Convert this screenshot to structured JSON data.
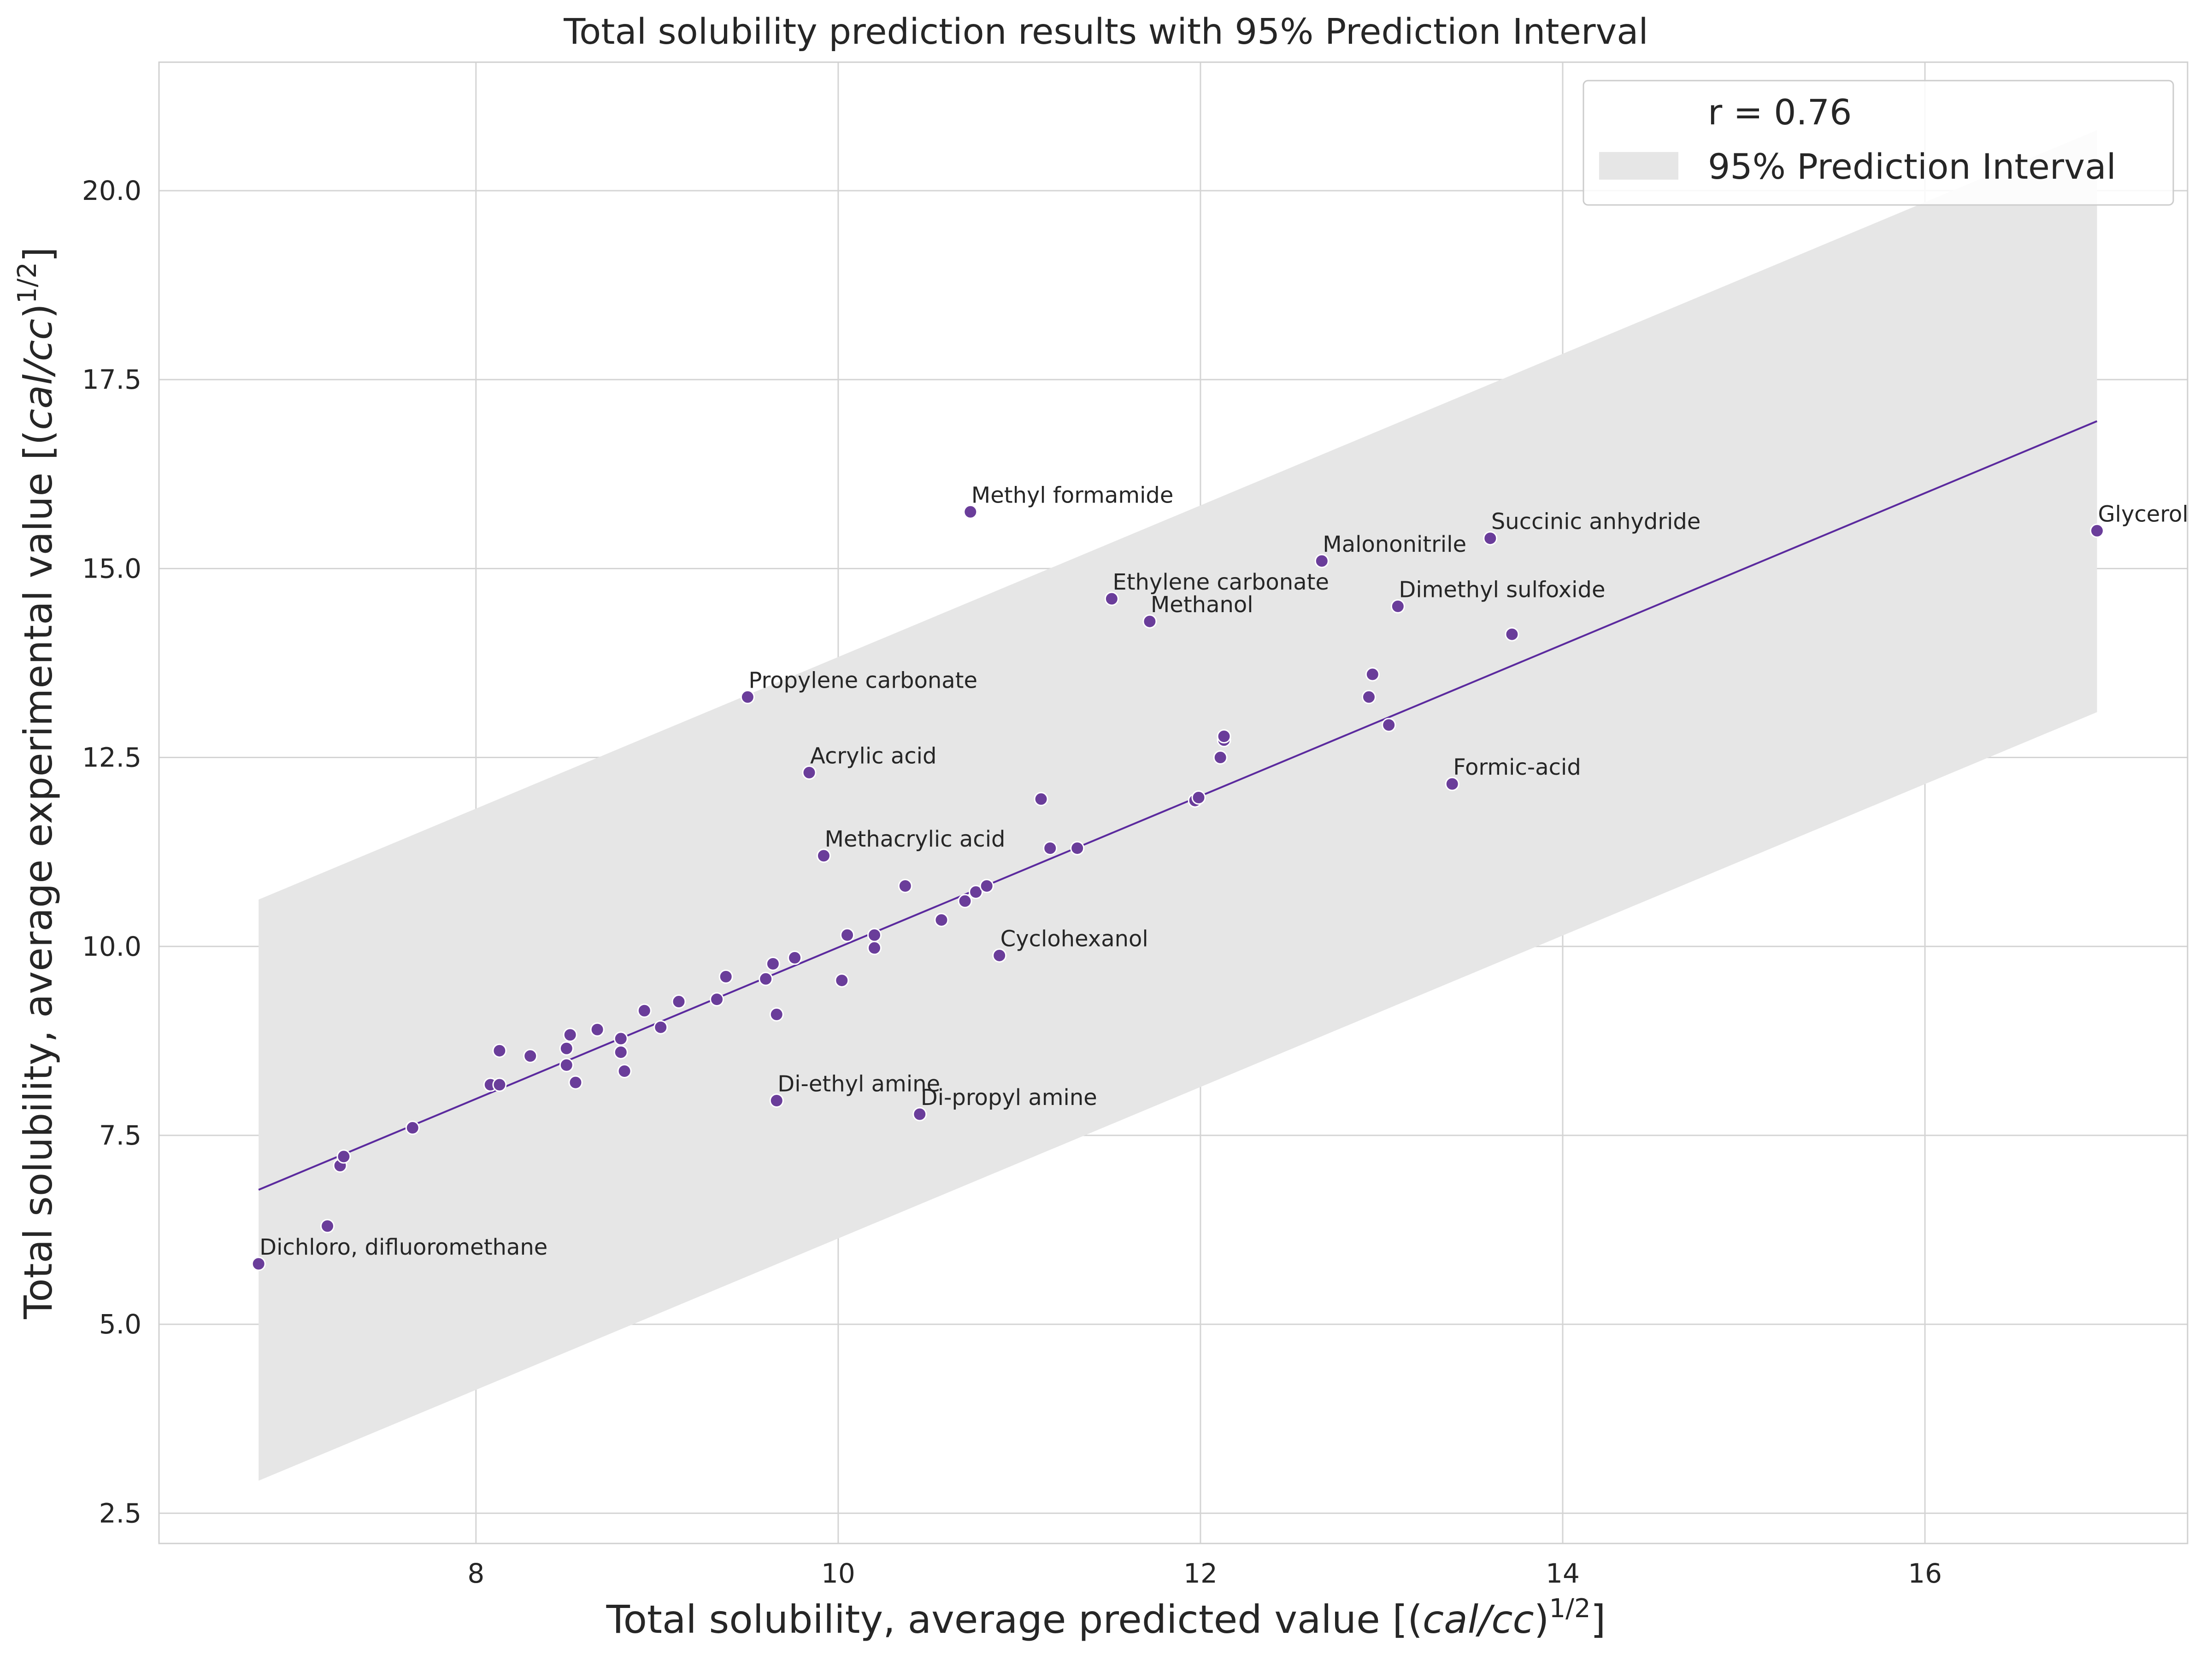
{
  "chart_data": {
    "type": "scatter",
    "title": "Total solubility prediction results with 95% Prediction Interval",
    "xlabel": {
      "pre": "Total solubility, average predicted value [(",
      "italic": "cal/cc",
      "post": ")",
      "sup": "1/2",
      "tail": "]"
    },
    "ylabel": {
      "pre": "Total solubility, average experimental value [(",
      "italic": "cal/cc",
      "post": ")",
      "sup": "1/2",
      "tail": "]"
    },
    "xlim": [
      6.25,
      17.45
    ],
    "ylim": [
      2.1,
      21.7
    ],
    "x_ticks": [
      8,
      10,
      12,
      14,
      16
    ],
    "x_tick_labels": [
      "8",
      "10",
      "12",
      "14",
      "16"
    ],
    "y_ticks": [
      2.5,
      5.0,
      7.5,
      10.0,
      12.5,
      15.0,
      17.5,
      20.0
    ],
    "y_tick_labels": [
      "2.5",
      "5.0",
      "7.5",
      "10.0",
      "12.5",
      "15.0",
      "17.5",
      "20.0"
    ],
    "grid": true,
    "legend": {
      "position": "top-right",
      "entries": [
        {
          "label": "r = 0.76",
          "kind": "blank"
        },
        {
          "label": "95% Prediction Interval",
          "kind": "patch"
        }
      ]
    },
    "regression_line": {
      "x": [
        6.8,
        16.95
      ],
      "y": [
        6.78,
        16.95
      ]
    },
    "prediction_interval": {
      "x": [
        6.8,
        16.95
      ],
      "upper": [
        10.62,
        20.8
      ],
      "lower": [
        2.93,
        13.1
      ]
    },
    "colors": {
      "points": "#6a3d9a",
      "line": "#5b2a9e",
      "interval": "#e6e6e6",
      "grid": "#d4d4d4"
    },
    "points": [
      {
        "x": 6.8,
        "y": 5.8,
        "label": "Dichloro, difluoromethane"
      },
      {
        "x": 7.18,
        "y": 6.3
      },
      {
        "x": 7.25,
        "y": 7.1
      },
      {
        "x": 7.27,
        "y": 7.22
      },
      {
        "x": 7.65,
        "y": 7.6
      },
      {
        "x": 8.08,
        "y": 8.17
      },
      {
        "x": 8.13,
        "y": 8.17
      },
      {
        "x": 8.13,
        "y": 8.62
      },
      {
        "x": 8.3,
        "y": 8.55
      },
      {
        "x": 8.5,
        "y": 8.43
      },
      {
        "x": 8.5,
        "y": 8.65
      },
      {
        "x": 8.52,
        "y": 8.83
      },
      {
        "x": 8.55,
        "y": 8.2
      },
      {
        "x": 8.67,
        "y": 8.9
      },
      {
        "x": 8.8,
        "y": 8.78
      },
      {
        "x": 8.8,
        "y": 8.6
      },
      {
        "x": 8.82,
        "y": 8.35
      },
      {
        "x": 8.93,
        "y": 9.15
      },
      {
        "x": 9.02,
        "y": 8.93
      },
      {
        "x": 9.12,
        "y": 9.27
      },
      {
        "x": 9.33,
        "y": 9.3
      },
      {
        "x": 9.38,
        "y": 9.6
      },
      {
        "x": 9.5,
        "y": 13.3,
        "label": "Propylene carbonate"
      },
      {
        "x": 9.6,
        "y": 9.57
      },
      {
        "x": 9.64,
        "y": 9.77
      },
      {
        "x": 9.66,
        "y": 9.1
      },
      {
        "x": 9.66,
        "y": 7.96,
        "label": "Di-ethyl amine"
      },
      {
        "x": 9.76,
        "y": 9.85
      },
      {
        "x": 9.84,
        "y": 12.3,
        "label": "Acrylic acid"
      },
      {
        "x": 9.92,
        "y": 11.2,
        "label": "Methacrylic acid"
      },
      {
        "x": 10.02,
        "y": 9.55
      },
      {
        "x": 10.05,
        "y": 10.15
      },
      {
        "x": 10.2,
        "y": 10.15
      },
      {
        "x": 10.2,
        "y": 9.98
      },
      {
        "x": 10.37,
        "y": 10.8
      },
      {
        "x": 10.45,
        "y": 7.78,
        "label": "Di-propyl amine"
      },
      {
        "x": 10.57,
        "y": 10.35
      },
      {
        "x": 10.7,
        "y": 10.6
      },
      {
        "x": 10.73,
        "y": 15.75,
        "label": "Methyl formamide"
      },
      {
        "x": 10.76,
        "y": 10.72
      },
      {
        "x": 10.82,
        "y": 10.8
      },
      {
        "x": 10.89,
        "y": 9.88,
        "label": "Cyclohexanol"
      },
      {
        "x": 11.12,
        "y": 11.95
      },
      {
        "x": 11.17,
        "y": 11.3
      },
      {
        "x": 11.32,
        "y": 11.3
      },
      {
        "x": 11.51,
        "y": 14.6,
        "label": "Ethylene carbonate"
      },
      {
        "x": 11.72,
        "y": 14.3,
        "label": "Methanol"
      },
      {
        "x": 11.97,
        "y": 11.93
      },
      {
        "x": 11.99,
        "y": 11.97
      },
      {
        "x": 12.11,
        "y": 12.5
      },
      {
        "x": 12.13,
        "y": 12.73
      },
      {
        "x": 12.13,
        "y": 12.78
      },
      {
        "x": 12.67,
        "y": 15.1,
        "label": "Malononitrile"
      },
      {
        "x": 12.93,
        "y": 13.3
      },
      {
        "x": 12.95,
        "y": 13.6
      },
      {
        "x": 13.04,
        "y": 12.93
      },
      {
        "x": 13.09,
        "y": 14.5,
        "label": "Dimethyl sulfoxide"
      },
      {
        "x": 13.39,
        "y": 12.15,
        "label": "Formic-acid"
      },
      {
        "x": 13.6,
        "y": 15.4,
        "label": "Succinic anhydride"
      },
      {
        "x": 13.72,
        "y": 14.13
      },
      {
        "x": 16.95,
        "y": 15.5,
        "label": "Glycerol"
      }
    ]
  }
}
